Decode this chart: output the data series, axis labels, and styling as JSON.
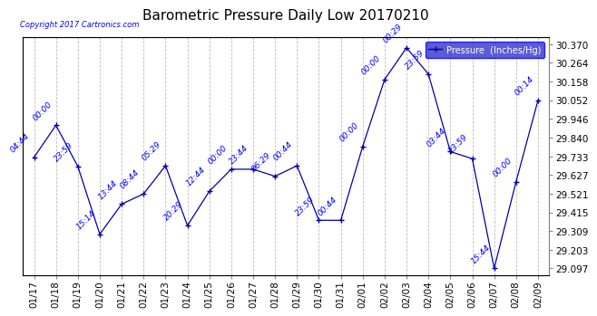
{
  "title": "Barometric Pressure Daily Low 20170210",
  "copyright_text": "Copyright 2017 Cartronics.com",
  "legend_label": "Pressure  (Inches/Hg)",
  "x_labels": [
    "01/17",
    "01/18",
    "01/19",
    "01/20",
    "01/21",
    "01/22",
    "01/23",
    "01/24",
    "01/25",
    "01/26",
    "01/27",
    "01/28",
    "01/29",
    "01/30",
    "01/31",
    "02/01",
    "02/02",
    "02/03",
    "02/04",
    "02/05",
    "02/06",
    "02/07",
    "02/08",
    "02/09"
  ],
  "y_values": [
    29.728,
    29.91,
    29.675,
    29.291,
    29.462,
    29.52,
    29.68,
    29.34,
    29.535,
    29.66,
    29.66,
    29.62,
    29.68,
    29.37,
    29.37,
    29.79,
    30.17,
    30.35,
    30.2,
    29.76,
    29.72,
    29.097,
    29.59,
    30.052
  ],
  "annotations": [
    "04:44",
    "00:00",
    "23:59",
    "15:14",
    "13:44",
    "08:44",
    "05:29",
    "20:29",
    "12:44",
    "00:00",
    "23:44",
    "06:29",
    "00:44",
    "23:59",
    "00:44",
    "00:00",
    "00:00",
    "00:29",
    "23:59",
    "03:44",
    "23:59",
    "15:44",
    "00:00",
    "00:14"
  ],
  "y_ticks": [
    29.097,
    29.203,
    29.309,
    29.415,
    29.521,
    29.627,
    29.733,
    29.84,
    29.946,
    30.052,
    30.158,
    30.264,
    30.37
  ],
  "line_color": "#0000AA",
  "marker_color": "#0000AA",
  "text_color": "#0000FF",
  "bg_color": "#ffffff",
  "grid_color": "#bbbbbb",
  "title_fontsize": 11,
  "tick_fontsize": 7.5,
  "annotation_fontsize": 6.5,
  "ylim_min": 29.06,
  "ylim_max": 30.41
}
